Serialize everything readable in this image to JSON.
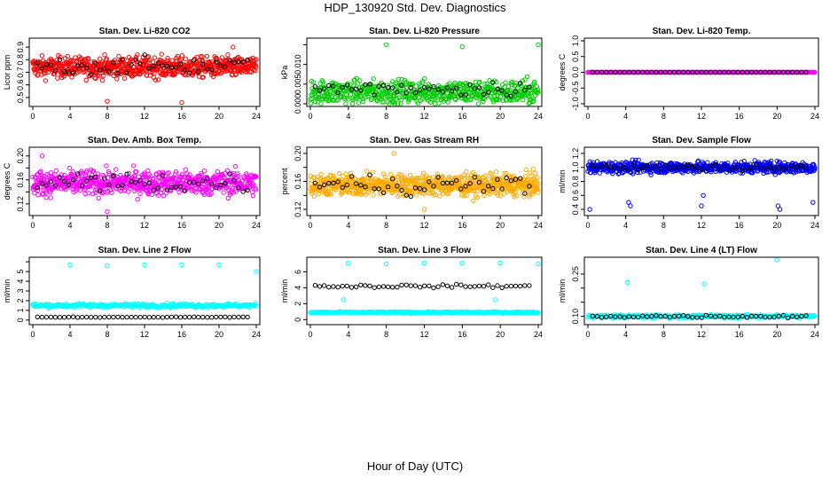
{
  "page": {
    "title": "HDP_130920  Std. Dev. Diagnostics",
    "xlabel": "Hour of Day (UTC)"
  },
  "chart_data": [
    {
      "type": "scatter",
      "title": "Stan. Dev. Li-820 CO2",
      "ylabel": "Licor ppm",
      "xlim": [
        0,
        24
      ],
      "ylim": [
        0.45,
        0.95
      ],
      "xticks": [
        0,
        4,
        8,
        12,
        16,
        20,
        24
      ],
      "yticks": [
        0.5,
        0.6,
        0.7,
        0.8,
        0.9
      ],
      "ytick_labels": [
        "0.5",
        "0.6",
        "0.7",
        "0.8",
        "0.9"
      ],
      "color": "#ff0000",
      "n_points": 700,
      "series": {
        "main": {
          "center": 0.74,
          "spread": 0.08,
          "outliers": [
            [
              8,
              0.47
            ],
            [
              16,
              0.46
            ],
            [
              21.5,
              0.9
            ]
          ]
        },
        "black": {
          "center": 0.75,
          "spread": 0.07
        }
      }
    },
    {
      "type": "scatter",
      "title": "Stan. Dev. Li-820 Pressure",
      "ylabel": "kPa",
      "xlim": [
        0,
        24
      ],
      "ylim": [
        0,
        0.016
      ],
      "xticks": [
        0,
        4,
        8,
        12,
        16,
        20,
        24
      ],
      "yticks": [
        0.0,
        0.005,
        0.01,
        0.015
      ],
      "ytick_labels": [
        "0.000",
        "0.005",
        "0.010",
        ""
      ],
      "color": "#00cc00",
      "n_points": 600,
      "series": {
        "main": {
          "center": 0.003,
          "spread": 0.003,
          "outliers": [
            [
              8,
              0.015
            ],
            [
              16,
              0.0145
            ],
            [
              24,
              0.015
            ]
          ]
        },
        "black": {
          "center": 0.004,
          "spread": 0.002
        }
      }
    },
    {
      "type": "scatter",
      "title": "Stan. Dev. Li-820 Temp.",
      "ylabel": "degrees C",
      "xlim": [
        0,
        24
      ],
      "ylim": [
        -1,
        1
      ],
      "xticks": [
        0,
        4,
        8,
        12,
        16,
        20,
        24
      ],
      "yticks": [
        -1.0,
        -0.5,
        0.0,
        0.5,
        1.0
      ],
      "ytick_labels": [
        "-1.0",
        "-0.5",
        "0.0",
        "0.5",
        "1.0"
      ],
      "color": "#ff00ff",
      "n_points": 300,
      "series": {
        "main": {
          "center": 0.0,
          "spread": 0.0,
          "outliers": []
        },
        "black": {
          "center": 0.0,
          "spread": 0.0
        }
      }
    },
    {
      "type": "scatter",
      "title": "Stan. Dev. Amb. Box Temp.",
      "ylabel": "degrees C",
      "xlim": [
        0,
        24
      ],
      "ylim": [
        0.105,
        0.21
      ],
      "xticks": [
        0,
        4,
        8,
        12,
        16,
        20,
        24
      ],
      "yticks": [
        0.12,
        0.14,
        0.16,
        0.18,
        0.2
      ],
      "ytick_labels": [
        "0.12",
        "",
        "0.16",
        "",
        "0.20"
      ],
      "color": "#ff00ff",
      "n_points": 700,
      "series": {
        "main": {
          "center": 0.155,
          "spread": 0.02,
          "outliers": [
            [
              8,
              0.107
            ],
            [
              1,
              0.2
            ]
          ]
        },
        "black": {
          "center": 0.155,
          "spread": 0.018
        }
      }
    },
    {
      "type": "scatter",
      "title": "Stan. Dev. Gas Stream RH",
      "ylabel": "percent",
      "xlim": [
        0,
        24
      ],
      "ylim": [
        0.115,
        0.205
      ],
      "xticks": [
        0,
        4,
        8,
        12,
        16,
        20,
        24
      ],
      "yticks": [
        0.12,
        0.14,
        0.16,
        0.18,
        0.2
      ],
      "ytick_labels": [
        "0.12",
        "",
        "0.16",
        "",
        "0.20"
      ],
      "color": "#ffaa00",
      "n_points": 800,
      "series": {
        "main": {
          "center": 0.155,
          "spread": 0.015,
          "outliers": [
            [
              8.8,
              0.2
            ],
            [
              12,
              0.12
            ]
          ]
        },
        "black": {
          "center": 0.155,
          "spread": 0.015
        }
      }
    },
    {
      "type": "scatter",
      "title": "Stan. Dev. Sample Flow",
      "ylabel": "ml/min",
      "xlim": [
        0,
        24
      ],
      "ylim": [
        0.35,
        1.25
      ],
      "xticks": [
        0,
        4,
        8,
        12,
        16,
        20,
        24
      ],
      "yticks": [
        0.4,
        0.6,
        0.8,
        1.0,
        1.2
      ],
      "ytick_labels": [
        "0.4",
        "0.6",
        "0.8",
        "1.0",
        "1.2"
      ],
      "color": "#0000ff",
      "n_points": 700,
      "series": {
        "main": {
          "center": 1.0,
          "spread": 0.08,
          "outliers": [
            [
              0.2,
              0.4
            ],
            [
              4.3,
              0.5
            ],
            [
              4.5,
              0.45
            ],
            [
              12.2,
              0.6
            ],
            [
              12,
              0.45
            ],
            [
              20.3,
              0.4
            ],
            [
              20.1,
              0.45
            ],
            [
              23.8,
              0.5
            ]
          ]
        },
        "black": {
          "center": 1.0,
          "spread": 0.05
        }
      }
    },
    {
      "type": "scatter",
      "title": "Stan. Dev. Line 2 Flow",
      "ylabel": "ml/min",
      "xlim": [
        0,
        24
      ],
      "ylim": [
        -0.2,
        6.2
      ],
      "xticks": [
        0,
        4,
        8,
        12,
        16,
        20,
        24
      ],
      "yticks": [
        0,
        1,
        2,
        3,
        4,
        5,
        6
      ],
      "ytick_labels": [
        "0",
        "1",
        "2",
        "3",
        "4",
        "5",
        ""
      ],
      "color": "#00ffff",
      "n_points": 300,
      "series": {
        "main": {
          "center": 1.5,
          "spread": 0.2,
          "outliers": [
            [
              4,
              5.7
            ],
            [
              8,
              5.6
            ],
            [
              12,
              5.7
            ],
            [
              16,
              5.7
            ],
            [
              20,
              5.7
            ],
            [
              24,
              5.0
            ]
          ]
        },
        "black": {
          "center": 0.3,
          "spread": 0.03
        }
      }
    },
    {
      "type": "scatter",
      "title": "Stan. Dev. Line 3 Flow",
      "ylabel": "ml/min",
      "xlim": [
        0,
        24
      ],
      "ylim": [
        -0.3,
        7.5
      ],
      "xticks": [
        0,
        4,
        8,
        12,
        16,
        20,
        24
      ],
      "yticks": [
        0,
        2,
        4,
        6
      ],
      "ytick_labels": [
        "0",
        "2",
        "4",
        "6"
      ],
      "color": "#00ffff",
      "n_points": 300,
      "series": {
        "main": {
          "center": 0.9,
          "spread": 0.1,
          "outliers": [
            [
              4,
              7.1
            ],
            [
              8,
              7.0
            ],
            [
              12,
              7.1
            ],
            [
              16,
              7.1
            ],
            [
              20,
              7.1
            ],
            [
              24,
              7.0
            ],
            [
              3.5,
              2.5
            ],
            [
              19.5,
              2.5
            ]
          ]
        },
        "black": {
          "center": 4.2,
          "spread": 0.2
        }
      }
    },
    {
      "type": "scatter",
      "title": "Stan. Dev. Line 4 (LT) Flow",
      "ylabel": "ml/min",
      "xlim": [
        0,
        24
      ],
      "ylim": [
        0.08,
        0.3
      ],
      "xticks": [
        0,
        4,
        8,
        12,
        16,
        20,
        24
      ],
      "yticks": [
        0.1,
        0.15,
        0.2,
        0.25
      ],
      "ytick_labels": [
        "0.10",
        "",
        "",
        "0.25"
      ],
      "color": "#00ffff",
      "n_points": 300,
      "series": {
        "main": {
          "center": 0.1,
          "spread": 0.006,
          "outliers": [
            [
              4.2,
              0.22
            ],
            [
              12.3,
              0.215
            ],
            [
              20,
              0.3
            ]
          ]
        },
        "black": {
          "center": 0.1,
          "spread": 0.005
        }
      }
    }
  ]
}
